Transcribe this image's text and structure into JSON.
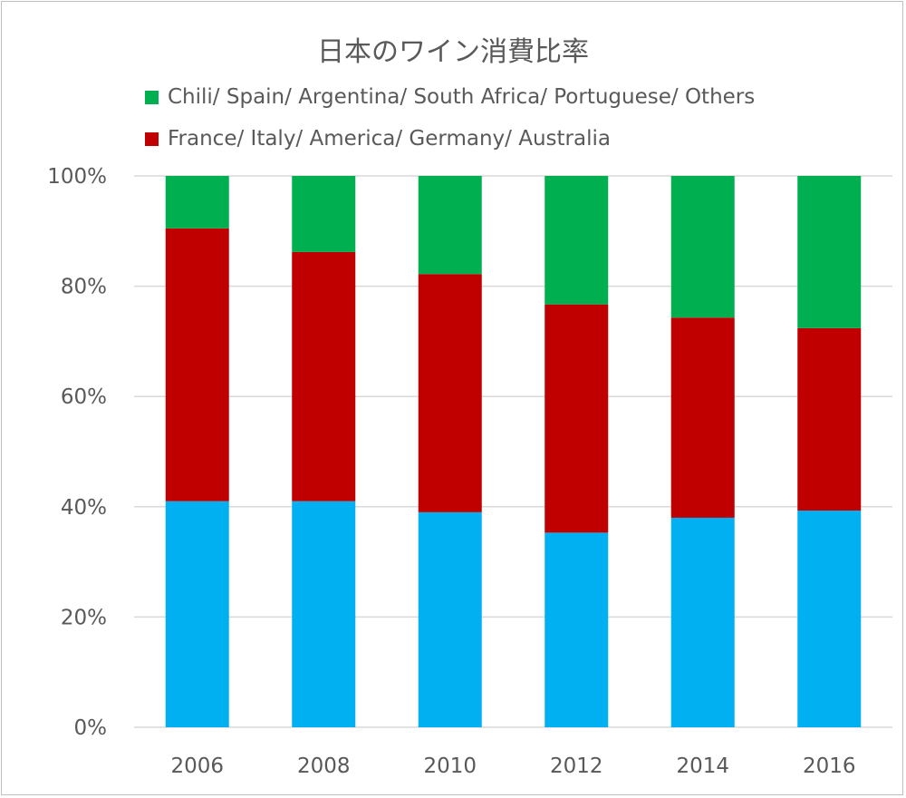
{
  "chart_data": {
    "type": "bar",
    "stacked": true,
    "title": "日本のワイン消費比率",
    "categories": [
      "2006",
      "2008",
      "2010",
      "2012",
      "2014",
      "2016"
    ],
    "series": [
      {
        "values": [
          41.0,
          41.0,
          39.0,
          35.3,
          38.0,
          39.3
        ],
        "color": "#00b0f0"
      },
      {
        "name": "France/ Italy/ America/ Germany/ Australia",
        "values": [
          49.5,
          45.2,
          43.2,
          41.4,
          36.3,
          33.1
        ],
        "color": "#c00000"
      },
      {
        "name": "Chili/ Spain/ Argentina/ South Africa/ Portuguese/ Others",
        "values": [
          9.5,
          13.8,
          17.8,
          23.3,
          25.7,
          27.6
        ],
        "color": "#00b050"
      }
    ],
    "ylim": [
      0,
      100
    ],
    "yticks": [
      "0%",
      "20%",
      "40%",
      "60%",
      "80%",
      "100%"
    ],
    "grid": true,
    "legend_position": "top-left"
  }
}
